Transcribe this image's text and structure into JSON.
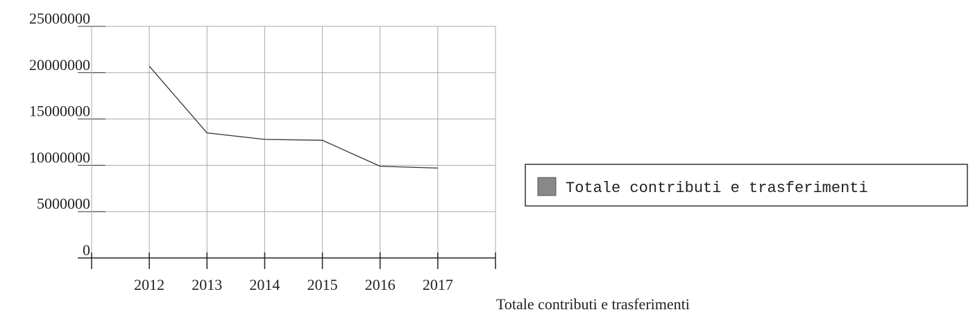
{
  "chart_data": {
    "type": "line",
    "categories": [
      "2012",
      "2013",
      "2014",
      "2015",
      "2016",
      "2017"
    ],
    "series": [
      {
        "name": "Totale contributi e trasferimenti",
        "color": "#333333",
        "values": [
          20700000,
          13500000,
          12800000,
          12700000,
          9900000,
          9700000
        ]
      }
    ],
    "x_label": "Totale contributi e trasferimenti",
    "ylim": [
      0,
      25000000
    ],
    "yticks": [
      0,
      5000000,
      10000000,
      15000000,
      20000000,
      25000000
    ],
    "grid": true,
    "legend": "right"
  }
}
